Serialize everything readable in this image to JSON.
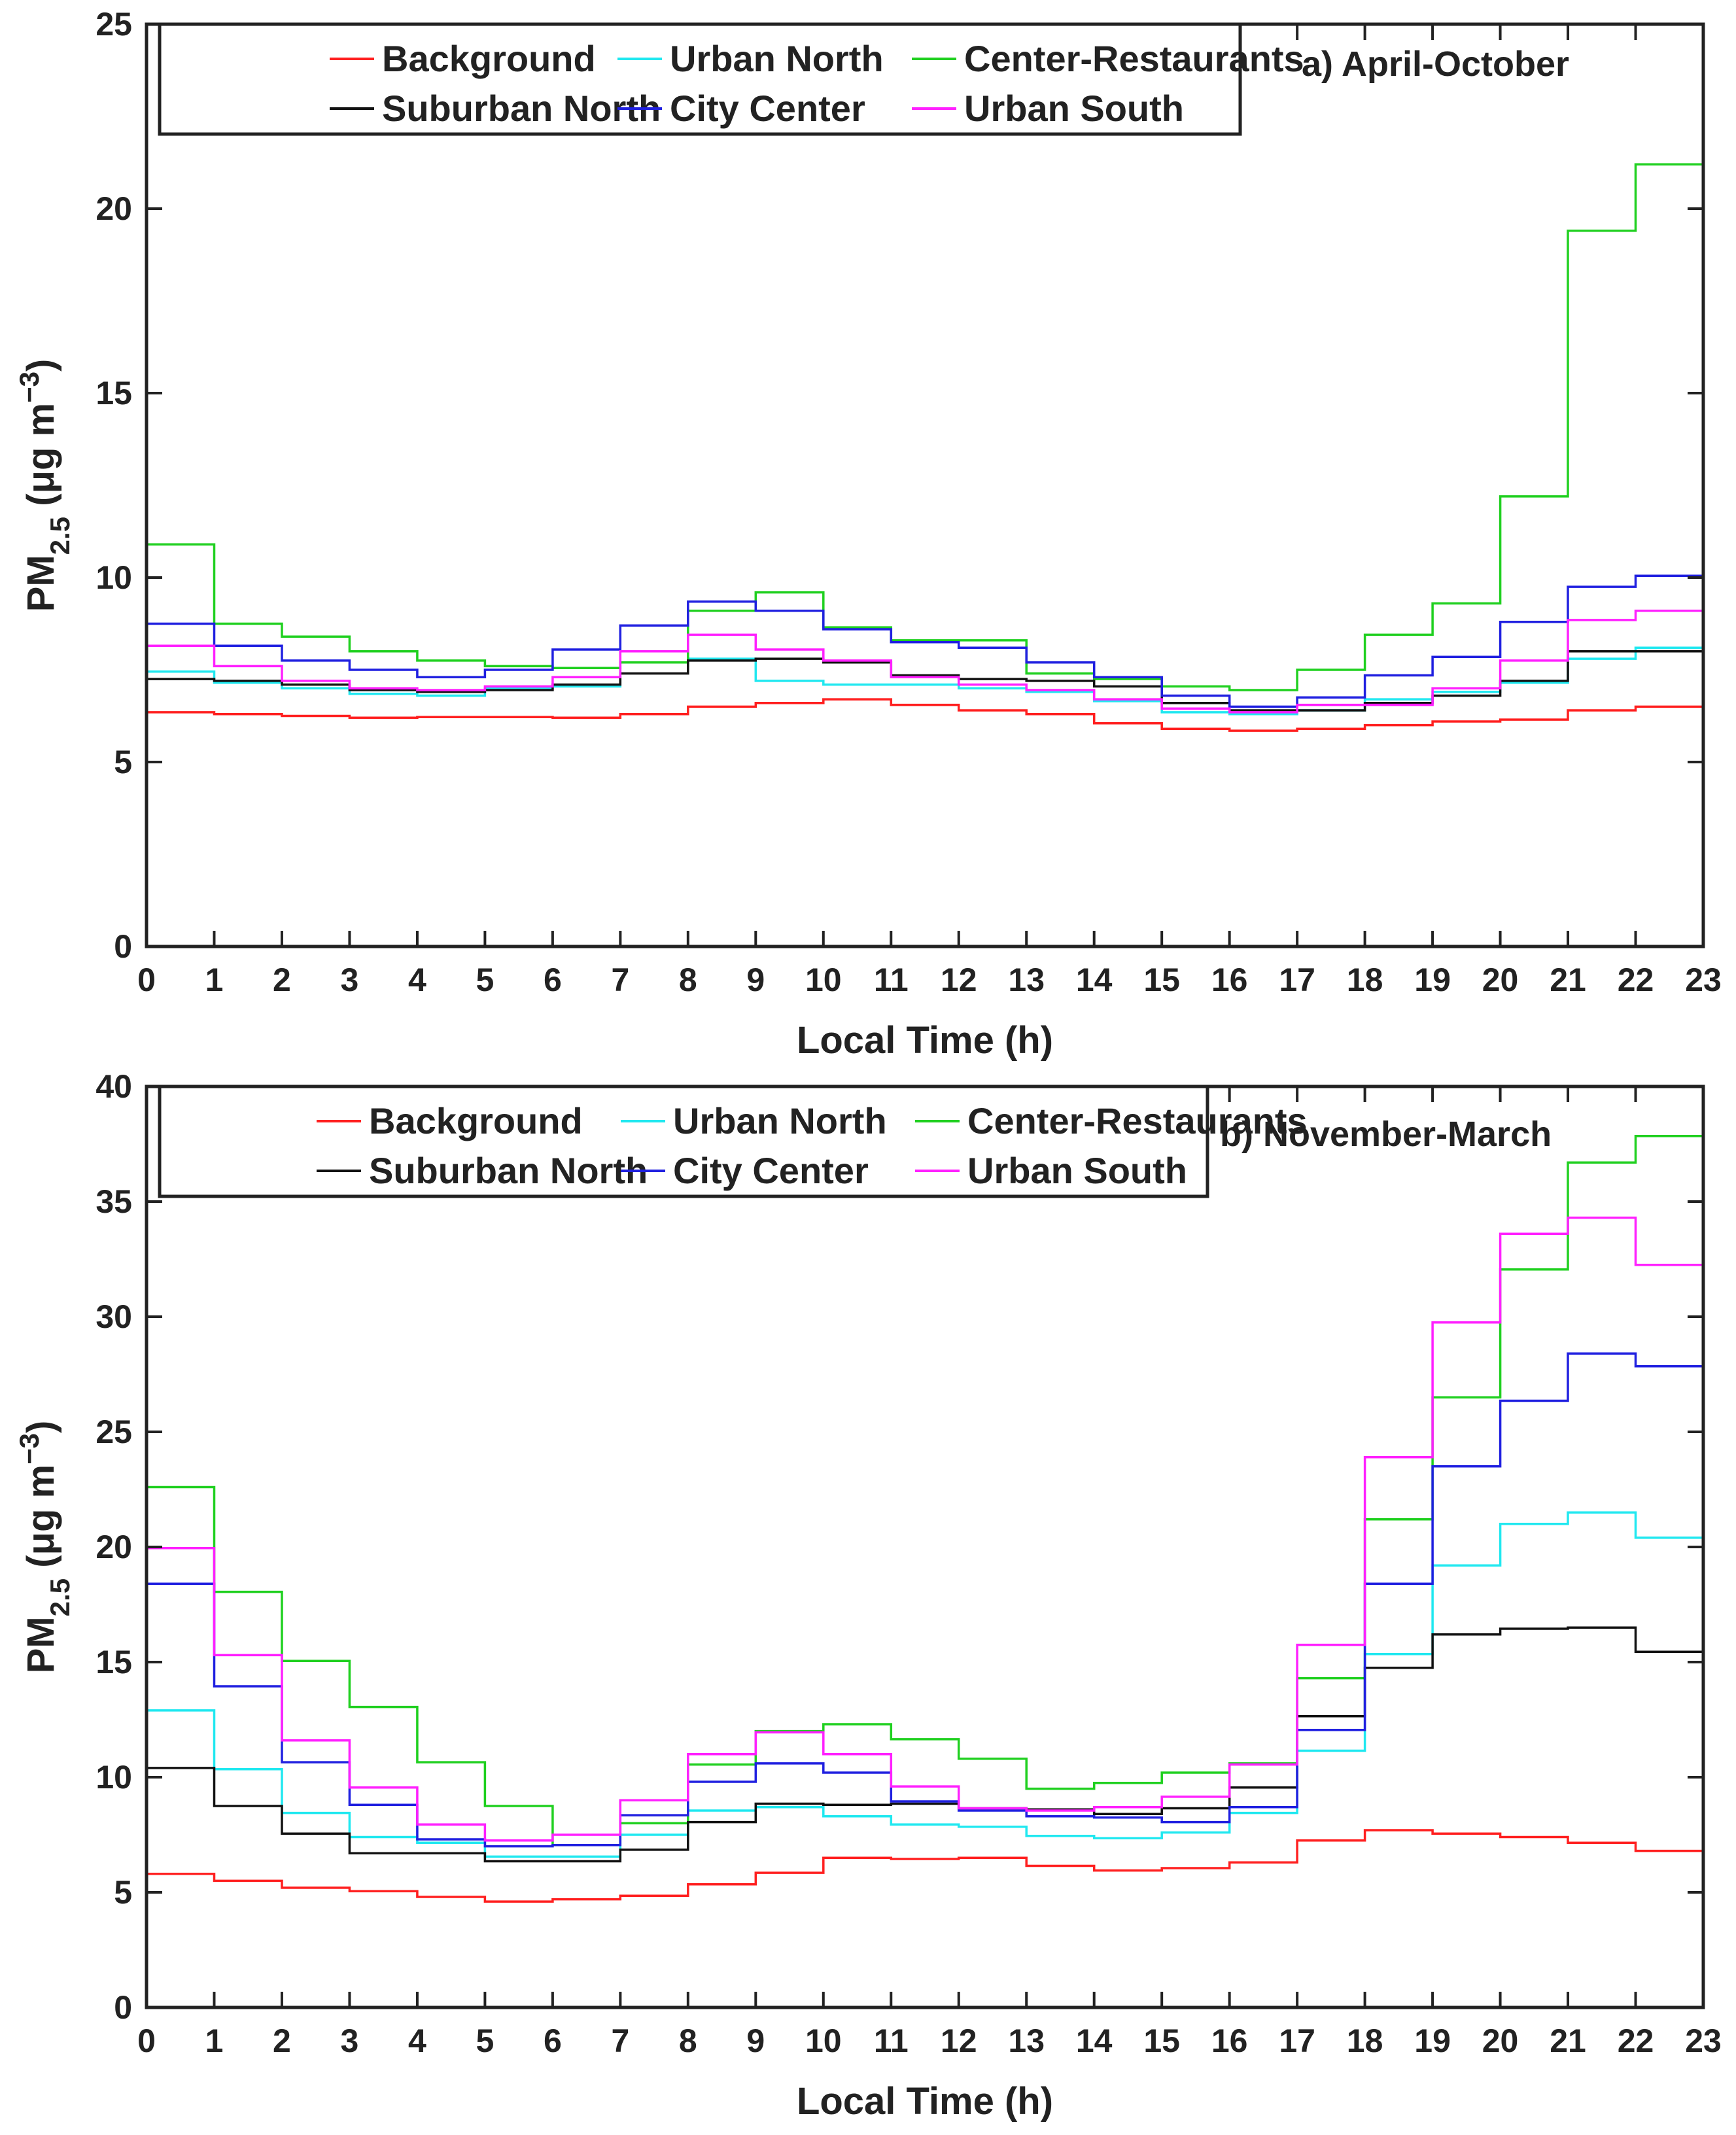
{
  "chart_data": [
    {
      "type": "line",
      "step": true,
      "panel_label": "a) April-October",
      "xlabel": "Local Time (h)",
      "ylabel": {
        "base": "PM",
        "sub": "2.5",
        "unit_pre": " (μg m",
        "sup": "−3",
        "unit_post": ")"
      },
      "x": [
        0,
        1,
        2,
        3,
        4,
        5,
        6,
        7,
        8,
        9,
        10,
        11,
        12,
        13,
        14,
        15,
        16,
        17,
        18,
        19,
        20,
        21,
        22,
        23
      ],
      "xticks": [
        "0",
        "1",
        "2",
        "3",
        "4",
        "5",
        "6",
        "7",
        "8",
        "9",
        "10",
        "11",
        "12",
        "13",
        "14",
        "15",
        "16",
        "17",
        "18",
        "19",
        "20",
        "21",
        "22",
        "23"
      ],
      "ylim": [
        0,
        25
      ],
      "yticks": [
        "0",
        "5",
        "10",
        "15",
        "20",
        "25"
      ],
      "series": [
        {
          "name": "Background",
          "color": "#ff2020",
          "values": [
            6.35,
            6.3,
            6.25,
            6.2,
            6.22,
            6.22,
            6.2,
            6.3,
            6.5,
            6.6,
            6.7,
            6.55,
            6.4,
            6.3,
            6.05,
            5.9,
            5.85,
            5.9,
            6.0,
            6.1,
            6.15,
            6.4,
            6.5,
            6.5
          ]
        },
        {
          "name": "Urban North",
          "color": "#20e8f0",
          "values": [
            7.45,
            7.15,
            7.0,
            6.85,
            6.8,
            7.0,
            7.05,
            7.7,
            7.8,
            7.2,
            7.1,
            7.1,
            7.0,
            6.9,
            6.65,
            6.35,
            6.3,
            6.4,
            6.7,
            6.9,
            7.15,
            7.8,
            8.1,
            8.1
          ]
        },
        {
          "name": "Center-Restaurants",
          "color": "#20d020",
          "values": [
            10.9,
            8.75,
            8.4,
            8.0,
            7.75,
            7.6,
            7.55,
            7.7,
            9.1,
            9.6,
            8.65,
            8.3,
            8.3,
            7.4,
            7.25,
            7.05,
            6.95,
            7.5,
            8.45,
            9.3,
            12.2,
            19.4,
            21.2,
            21.2
          ]
        },
        {
          "name": "Suburban North",
          "color": "#111111",
          "values": [
            7.25,
            7.2,
            7.1,
            6.95,
            6.9,
            6.95,
            7.1,
            7.4,
            7.75,
            7.8,
            7.7,
            7.35,
            7.25,
            7.2,
            7.05,
            6.6,
            6.4,
            6.4,
            6.6,
            6.8,
            7.2,
            8.0,
            8.0,
            8.0
          ]
        },
        {
          "name": "City Center",
          "color": "#2020e0",
          "values": [
            8.75,
            8.15,
            7.75,
            7.5,
            7.3,
            7.5,
            8.05,
            8.7,
            9.35,
            9.1,
            8.6,
            8.25,
            8.1,
            7.7,
            7.3,
            6.8,
            6.5,
            6.75,
            7.35,
            7.85,
            8.8,
            9.75,
            10.05,
            10.05
          ]
        },
        {
          "name": "Urban South",
          "color": "#ff20ff",
          "values": [
            8.15,
            7.6,
            7.2,
            7.0,
            6.95,
            7.05,
            7.3,
            8.0,
            8.45,
            8.05,
            7.75,
            7.3,
            7.1,
            6.95,
            6.7,
            6.45,
            6.35,
            6.55,
            6.55,
            7.0,
            7.75,
            8.85,
            9.1,
            9.1
          ]
        }
      ]
    },
    {
      "type": "line",
      "step": true,
      "panel_label": "b) November-March",
      "xlabel": "Local Time (h)",
      "ylabel": {
        "base": "PM",
        "sub": "2.5",
        "unit_pre": " (μg m",
        "sup": "−3",
        "unit_post": ")"
      },
      "x": [
        0,
        1,
        2,
        3,
        4,
        5,
        6,
        7,
        8,
        9,
        10,
        11,
        12,
        13,
        14,
        15,
        16,
        17,
        18,
        19,
        20,
        21,
        22,
        23
      ],
      "xticks": [
        "0",
        "1",
        "2",
        "3",
        "4",
        "5",
        "6",
        "7",
        "8",
        "9",
        "10",
        "11",
        "12",
        "13",
        "14",
        "15",
        "16",
        "17",
        "18",
        "19",
        "20",
        "21",
        "22",
        "23"
      ],
      "ylim": [
        0,
        40
      ],
      "yticks": [
        "0",
        "5",
        "10",
        "15",
        "20",
        "25",
        "30",
        "35",
        "40"
      ],
      "series": [
        {
          "name": "Background",
          "color": "#ff2020",
          "values": [
            5.8,
            5.5,
            5.2,
            5.05,
            4.8,
            4.6,
            4.7,
            4.85,
            5.35,
            5.85,
            6.5,
            6.45,
            6.5,
            6.15,
            5.95,
            6.05,
            6.3,
            7.25,
            7.7,
            7.55,
            7.4,
            7.15,
            6.8,
            6.8
          ]
        },
        {
          "name": "Urban North",
          "color": "#20e8f0",
          "values": [
            12.9,
            10.35,
            8.45,
            7.4,
            7.15,
            6.55,
            6.55,
            7.5,
            8.55,
            8.7,
            8.3,
            7.95,
            7.85,
            7.45,
            7.35,
            7.6,
            8.45,
            11.15,
            15.35,
            19.2,
            21.0,
            21.5,
            20.4,
            20.4
          ]
        },
        {
          "name": "Center-Restaurants",
          "color": "#20d020",
          "values": [
            22.6,
            18.05,
            15.05,
            13.05,
            10.65,
            8.75,
            7.05,
            8.0,
            10.55,
            12.0,
            12.3,
            11.65,
            10.8,
            9.5,
            9.75,
            10.2,
            10.6,
            14.3,
            21.2,
            26.5,
            32.05,
            36.7,
            37.85,
            37.85
          ]
        },
        {
          "name": "Suburban North",
          "color": "#111111",
          "values": [
            10.4,
            8.75,
            7.55,
            6.7,
            6.7,
            6.35,
            6.35,
            6.85,
            8.05,
            8.85,
            8.8,
            8.85,
            8.65,
            8.6,
            8.4,
            8.65,
            9.55,
            12.65,
            14.75,
            16.2,
            16.45,
            16.5,
            15.45,
            15.45
          ]
        },
        {
          "name": "City Center",
          "color": "#2020e0",
          "values": [
            18.4,
            13.95,
            10.65,
            8.8,
            7.3,
            7.0,
            7.05,
            8.35,
            9.8,
            10.6,
            10.2,
            8.95,
            8.55,
            8.3,
            8.25,
            8.05,
            8.7,
            12.05,
            18.4,
            23.5,
            26.35,
            28.4,
            27.85,
            27.85
          ]
        },
        {
          "name": "Urban South",
          "color": "#ff20ff",
          "values": [
            19.95,
            15.3,
            11.6,
            9.55,
            7.95,
            7.25,
            7.5,
            9.0,
            11.0,
            11.95,
            11.0,
            9.6,
            8.65,
            8.55,
            8.7,
            9.15,
            10.55,
            15.75,
            23.9,
            29.75,
            33.6,
            34.3,
            32.25,
            32.25
          ]
        }
      ]
    }
  ]
}
